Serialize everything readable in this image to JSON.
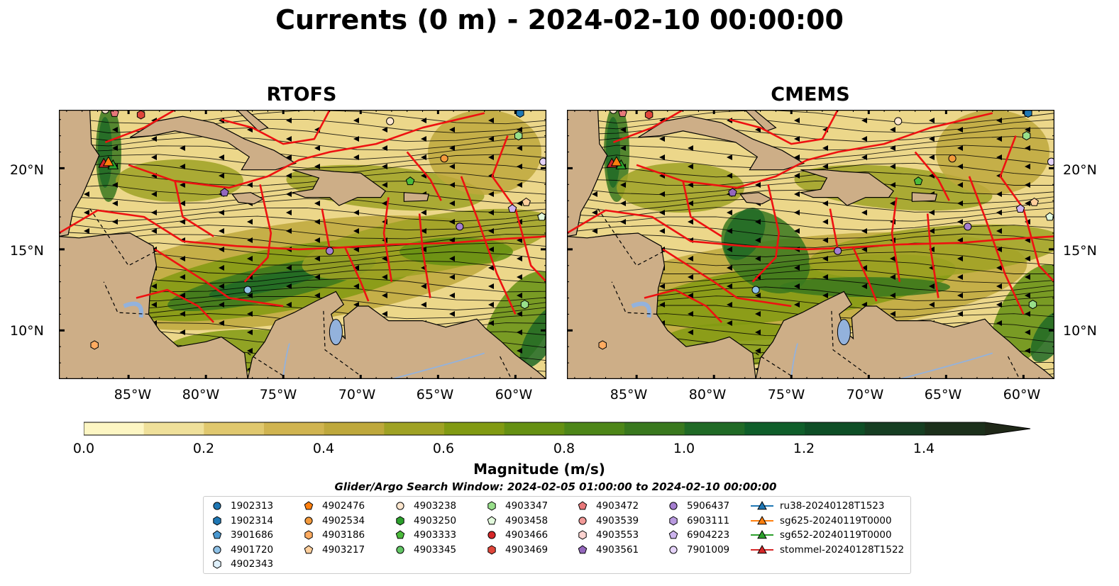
{
  "title": "Currents (0 m) - 2024-02-10 00:00:00",
  "panels": [
    {
      "name": "RTOFS"
    },
    {
      "name": "CMEMS"
    }
  ],
  "lat_ticks": [
    "20°N",
    "15°N",
    "10°N"
  ],
  "lon_ticks": [
    "85°W",
    "80°W",
    "75°W",
    "70°W",
    "65°W",
    "60°W"
  ],
  "colorbar": {
    "label": "Magnitude (m/s)",
    "ticks": [
      "0.0",
      "0.2",
      "0.4",
      "0.6",
      "0.8",
      "1.0",
      "1.2",
      "1.4"
    ],
    "colors": [
      "#fdf6c3",
      "#efe09a",
      "#e0c86e",
      "#d0b450",
      "#bea83c",
      "#9fa224",
      "#819a12",
      "#659012",
      "#4d8618",
      "#39781e",
      "#206a26",
      "#0f5e2a",
      "#0e4e26",
      "#163e22",
      "#1c301b",
      "#1f2818"
    ]
  },
  "search_window": "Glider/Argo Search Window: 2024-02-05 01:00:00 to 2024-02-10 00:00:00",
  "legend": [
    {
      "label": "1902313",
      "marker": "circle",
      "color": "#1f77b4"
    },
    {
      "label": "1902314",
      "marker": "hexagon",
      "color": "#1f77b4"
    },
    {
      "label": "3901686",
      "marker": "pentagon",
      "color": "#4a98d0"
    },
    {
      "label": "4901720",
      "marker": "circle",
      "color": "#8ec1e6"
    },
    {
      "label": "4902343",
      "marker": "hexagon",
      "color": "#dff0fb"
    },
    {
      "label": "4902476",
      "marker": "pentagon",
      "color": "#ff7f0e"
    },
    {
      "label": "4902534",
      "marker": "circle",
      "color": "#f39a3c"
    },
    {
      "label": "4903186",
      "marker": "hexagon",
      "color": "#ffab60"
    },
    {
      "label": "4903217",
      "marker": "pentagon",
      "color": "#ffcf9c"
    },
    {
      "label": "4903238",
      "marker": "circle",
      "color": "#ffe7cf"
    },
    {
      "label": "4903250",
      "marker": "hexagon",
      "color": "#2ca02c"
    },
    {
      "label": "4903333",
      "marker": "pentagon",
      "color": "#4cbb3c"
    },
    {
      "label": "4903345",
      "marker": "circle",
      "color": "#62c765"
    },
    {
      "label": "4903347",
      "marker": "hexagon",
      "color": "#98df8a"
    },
    {
      "label": "4903458",
      "marker": "pentagon",
      "color": "#e2f9dc"
    },
    {
      "label": "4903466",
      "marker": "circle",
      "color": "#d62728"
    },
    {
      "label": "4903469",
      "marker": "hexagon",
      "color": "#e0463a"
    },
    {
      "label": "4903472",
      "marker": "pentagon",
      "color": "#e8787a"
    },
    {
      "label": "4903539",
      "marker": "circle",
      "color": "#f29a98"
    },
    {
      "label": "4903553",
      "marker": "hexagon",
      "color": "#fdd3d0"
    },
    {
      "label": "4903561",
      "marker": "pentagon",
      "color": "#9467bd"
    },
    {
      "label": "5906437",
      "marker": "circle",
      "color": "#a57ed0"
    },
    {
      "label": "6903111",
      "marker": "hexagon",
      "color": "#b99ae0"
    },
    {
      "label": "6904223",
      "marker": "pentagon",
      "color": "#cdb4ee"
    },
    {
      "label": "7901009",
      "marker": "circle",
      "color": "#e6d4fa"
    },
    {
      "label": "ru38-20240128T1523",
      "marker": "triangle",
      "color": "#1f77b4"
    },
    {
      "label": "sg625-20240119T0000",
      "marker": "triangle",
      "color": "#ff7f0e"
    },
    {
      "label": "sg652-20240119T0000",
      "marker": "triangle",
      "color": "#2ca02c"
    },
    {
      "label": "stommel-20240128T1522",
      "marker": "triangle",
      "color": "#d62728"
    }
  ]
}
